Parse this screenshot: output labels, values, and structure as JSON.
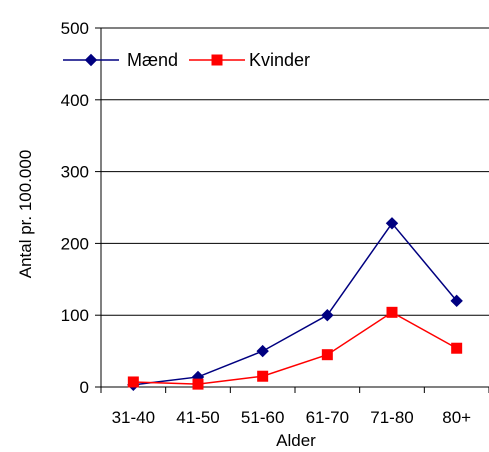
{
  "chart_data": {
    "type": "line",
    "categories": [
      "31-40",
      "41-50",
      "51-60",
      "61-70",
      "71-80",
      "80+"
    ],
    "series": [
      {
        "name": "Mænd",
        "values": [
          3,
          14,
          50,
          100,
          228,
          120
        ],
        "color": "#000080",
        "marker": "diamond"
      },
      {
        "name": "Kvinder",
        "values": [
          7,
          4,
          15,
          45,
          104,
          54
        ],
        "color": "#ff0000",
        "marker": "square"
      }
    ],
    "xlabel": "Alder",
    "ylabel": "Antal pr. 100.000",
    "ylim": [
      0,
      500
    ],
    "yticks": [
      0,
      100,
      200,
      300,
      400,
      500
    ],
    "grid": true,
    "legend": "top-left"
  }
}
